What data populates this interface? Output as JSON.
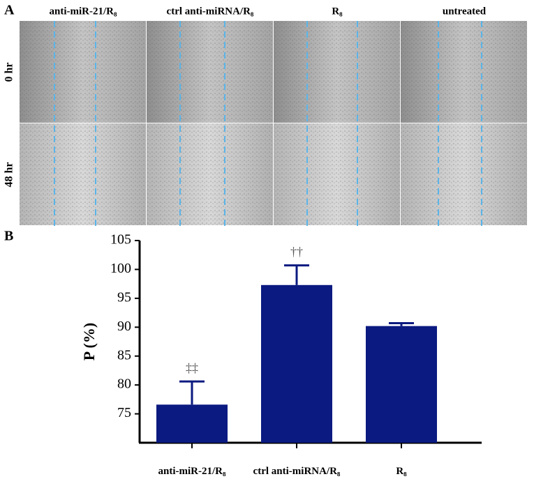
{
  "panel_labels": [
    "A",
    "B"
  ],
  "panel_a": {
    "columns": [
      "anti-miR-21/R₈",
      "ctrl anti-miRNA/R₈",
      "R₈",
      "untreated"
    ],
    "rows": [
      "0 hr",
      "48 hr"
    ]
  },
  "chart_data": {
    "type": "bar",
    "categories": [
      "anti-miR-21/R₈",
      "ctrl anti-miRNA/R₈",
      "R₈"
    ],
    "values": [
      76.6,
      97.3,
      90.2
    ],
    "errors": [
      4.0,
      3.4,
      0.5
    ],
    "value_annotations": [
      "‡‡",
      "††",
      null
    ],
    "y_label": "P (%)",
    "color": "#0b1a80",
    "ylim": [
      70,
      105
    ],
    "yticks": [
      75,
      80,
      85,
      90,
      95,
      100,
      105
    ]
  }
}
